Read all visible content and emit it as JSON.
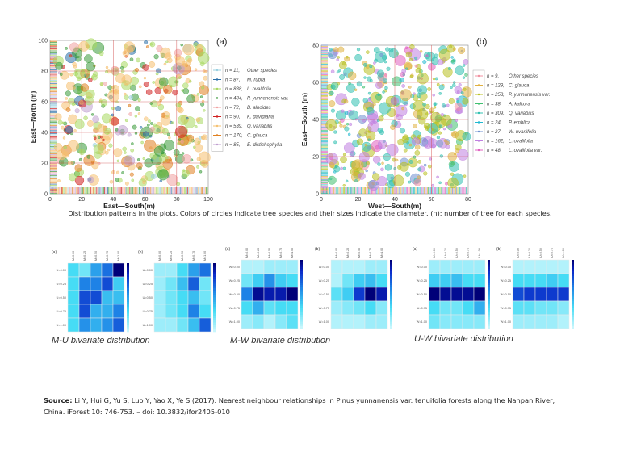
{
  "caption": "Distribution patterns in the plots. Colors of circles indicate tree species and their sizes indicate the diameter. (n): number of tree for each species.",
  "source": {
    "label": "Source:",
    "text": "Li Y, Hui G, Yu S, Luo Y, Yao X, Ye S (2017). Nearest neighbour relationships in Pinus yunnanensis var. tenuifolia forests along the Nanpan River,",
    "text2": "China. iForest 10: 746-753. – doi: 10.3832/ifor2405-010"
  },
  "heatmap_titles": [
    "M-U bivariate distribution",
    "M-W bivariate distribution",
    "U-W bivariate distribution"
  ],
  "chart_data": [
    {
      "type": "scatter",
      "panel": "(a)",
      "xlabel": "East—South(m)",
      "ylabel": "East—North (m)",
      "xlim": [
        0,
        100
      ],
      "ylim": [
        0,
        100
      ],
      "ticks": [
        0,
        20,
        40,
        60,
        80,
        100
      ],
      "grid": true,
      "legend_placement": "right",
      "legend": [
        {
          "n": "n = 11,",
          "name": "Other species",
          "color": "#9ad0e0"
        },
        {
          "n": "n = 87,",
          "name": "M. rubra",
          "color": "#2a6fa8"
        },
        {
          "n": "n = 838,",
          "name": "L. ovalifolia",
          "color": "#a8d860"
        },
        {
          "n": "n = 484,",
          "name": "P. yunnanensis var.",
          "color": "#3a9a3a"
        },
        {
          "n": "n = 72,",
          "name": "B. alnoides",
          "color": "#f0a0a0"
        },
        {
          "n": "n = 90,",
          "name": "K. davidiana",
          "color": "#d02020"
        },
        {
          "n": "n = 539,",
          "name": "Q. variabilis",
          "color": "#f5c070"
        },
        {
          "n": "n = 170,",
          "name": "C. glauca",
          "color": "#e08020"
        },
        {
          "n": "n = 85,",
          "name": "E. distichophylla",
          "color": "#c0a0d0"
        }
      ]
    },
    {
      "type": "scatter",
      "panel": "(b)",
      "xlabel": "West—South(m)",
      "ylabel": "East—South (m)",
      "xlim": [
        0,
        80
      ],
      "ylim": [
        0,
        80
      ],
      "ticks": [
        0,
        20,
        40,
        60,
        80
      ],
      "grid": true,
      "legend_placement": "right",
      "legend": [
        {
          "n": "n = 9,",
          "name": "Other species",
          "color": "#f090a0"
        },
        {
          "n": "n = 129,",
          "name": "C. glauca",
          "color": "#e0b040"
        },
        {
          "n": "n = 253,",
          "name": "P. yunnanensis var.",
          "color": "#b8c020"
        },
        {
          "n": "n = 38,",
          "name": "A. kalkora",
          "color": "#40c070"
        },
        {
          "n": "n = 309,",
          "name": "Q. variabilis",
          "color": "#30c0b0"
        },
        {
          "n": "n = 24,",
          "name": "P. emblica",
          "color": "#20b8d0"
        },
        {
          "n": "n = 27,",
          "name": "W. uvariifolia",
          "color": "#7090d0"
        },
        {
          "n": "n = 162,",
          "name": "L. ovalifolia",
          "color": "#c080e0"
        },
        {
          "n": "n = 48",
          "name": "L. ovalifolia var.",
          "color": "#e060c0"
        }
      ]
    },
    {
      "type": "heatmap",
      "panel": "(a)",
      "group": "M-U",
      "cols": [
        "M=0.00",
        "M=0.25",
        "M=0.50",
        "M=0.75",
        "M=1.00"
      ],
      "rows": [
        "U=0.00",
        "U=0.25",
        "U=0.50",
        "U=0.75",
        "U=1.00"
      ],
      "values": [
        [
          0.3,
          0.2,
          0.5,
          0.65,
          1
        ],
        [
          0.3,
          0.6,
          0.6,
          0.75,
          0.35
        ],
        [
          0.3,
          0.75,
          0.75,
          0.4,
          0.4
        ],
        [
          0.3,
          0.75,
          0.45,
          0.45,
          0.6
        ],
        [
          0.3,
          0.55,
          0.45,
          0.55,
          0.7
        ]
      ]
    },
    {
      "type": "heatmap",
      "panel": "(b)",
      "group": "M-U",
      "cols": [
        "M=0.00",
        "M=0.25",
        "M=0.50",
        "M=0.75",
        "M=1.00"
      ],
      "rows": [
        "U=0.00",
        "U=0.25",
        "U=0.50",
        "U=0.75",
        "U=1.00"
      ],
      "values": [
        [
          0.1,
          0.1,
          0.3,
          0.5,
          0.65
        ],
        [
          0.1,
          0.2,
          0.4,
          0.7,
          0.2
        ],
        [
          0.1,
          0.2,
          0.3,
          0.4,
          0.2
        ],
        [
          0.1,
          0.2,
          0.3,
          0.6,
          0.3
        ],
        [
          0.1,
          0.1,
          0.2,
          0.4,
          0.7
        ]
      ]
    },
    {
      "type": "heatmap",
      "panel": "(a)",
      "group": "M-W",
      "cols": [
        "M=0.00",
        "M=0.25",
        "M=0.50",
        "M=0.75",
        "M=1.00"
      ],
      "rows": [
        "W=0.00",
        "W=0.25",
        "W=0.50",
        "W=0.75",
        "W=1.00"
      ],
      "values": [
        [
          0.05,
          0.05,
          0.1,
          0.1,
          0.1
        ],
        [
          0.2,
          0.35,
          0.55,
          0.35,
          0.3
        ],
        [
          0.6,
          0.95,
          0.9,
          0.9,
          1
        ],
        [
          0.3,
          0.45,
          0.25,
          0.3,
          0.3
        ],
        [
          0.1,
          0.15,
          0.05,
          0.15,
          0.25
        ]
      ]
    },
    {
      "type": "heatmap",
      "panel": "(b)",
      "group": "M-W",
      "cols": [
        "M=0.00",
        "M=0.25",
        "M=0.50",
        "M=0.75",
        "M=1.00"
      ],
      "rows": [
        "W=0.00",
        "W=0.25",
        "W=0.50",
        "W=0.75",
        "W=1.00"
      ],
      "values": [
        [
          0.05,
          0.05,
          0.05,
          0.1,
          0.1
        ],
        [
          0.05,
          0.2,
          0.35,
          0.4,
          0.3
        ],
        [
          0.25,
          0.35,
          0.8,
          1,
          0.9
        ],
        [
          0.1,
          0.15,
          0.2,
          0.3,
          0.15
        ],
        [
          0.05,
          0.05,
          0.05,
          0.1,
          0.1
        ]
      ]
    },
    {
      "type": "heatmap",
      "panel": "(a)",
      "group": "U-W",
      "cols": [
        "U=0.00",
        "U=0.25",
        "U=0.50",
        "U=0.75",
        "U=1.00"
      ],
      "rows": [
        "W=0.00",
        "W=0.25",
        "W=0.50",
        "U=0.75",
        "W=1.00"
      ],
      "values": [
        [
          0.1,
          0.1,
          0.1,
          0.1,
          0.1
        ],
        [
          0.35,
          0.35,
          0.4,
          0.3,
          0.3
        ],
        [
          1,
          0.95,
          0.95,
          0.95,
          1
        ],
        [
          0.3,
          0.2,
          0.2,
          0.3,
          0.45
        ],
        [
          0.2,
          0.15,
          0.15,
          0.15,
          0.15
        ]
      ]
    },
    {
      "type": "heatmap",
      "panel": "(b)",
      "group": "U-W",
      "cols": [
        "U=0.00",
        "U=0.25",
        "U=0.50",
        "U=0.75",
        "U=1.00"
      ],
      "rows": [
        "W=0.00",
        "W=0.25",
        "W=0.50",
        "W=0.75",
        "W=1.00"
      ],
      "values": [
        [
          0.05,
          0.05,
          0.05,
          0.05,
          0.05
        ],
        [
          0.3,
          0.3,
          0.3,
          0.35,
          0.3
        ],
        [
          0.75,
          0.8,
          0.8,
          0.8,
          0.8
        ],
        [
          0.25,
          0.25,
          0.2,
          0.2,
          0.15
        ],
        [
          0.1,
          0.1,
          0.1,
          0.1,
          0.05
        ]
      ]
    }
  ]
}
